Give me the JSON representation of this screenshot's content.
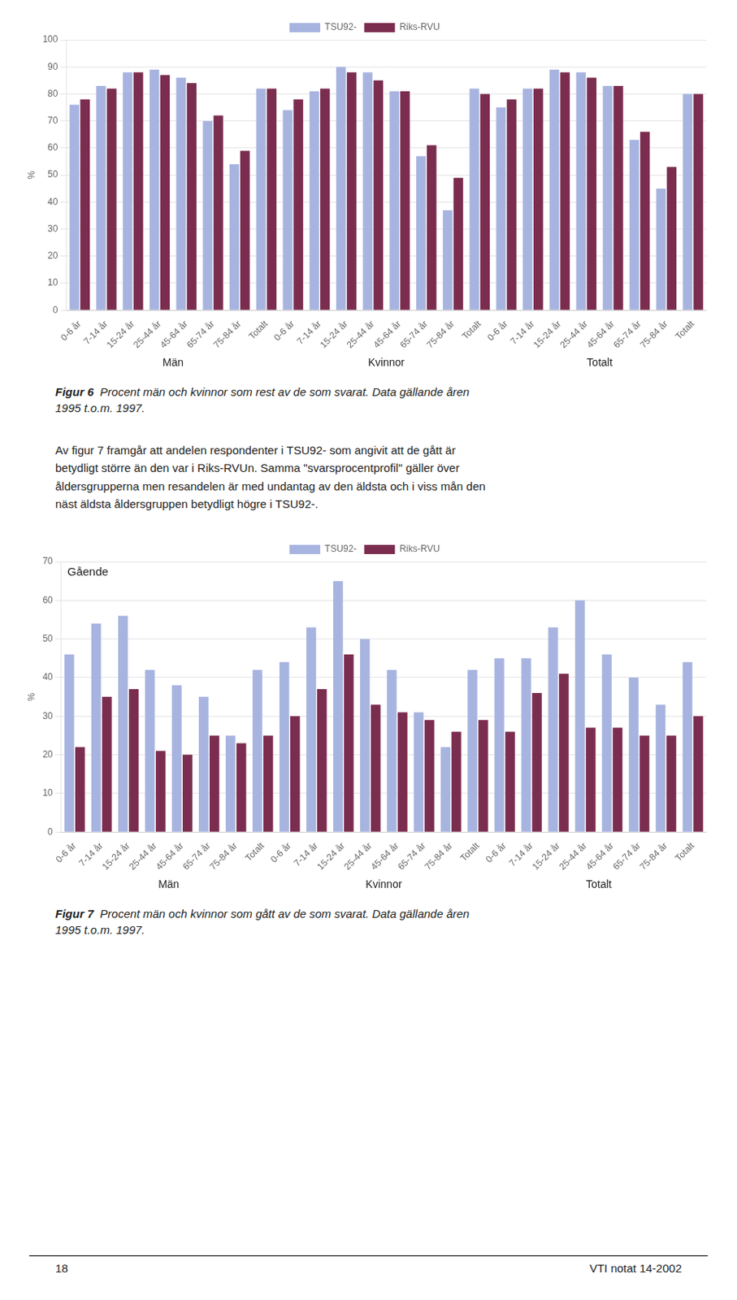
{
  "chart_data": [
    {
      "type": "bar",
      "ylabel": "%",
      "grid": true,
      "legend": "top",
      "ylim": [
        0,
        100
      ],
      "yticks": [
        0,
        10,
        20,
        30,
        40,
        50,
        60,
        70,
        80,
        90,
        100
      ],
      "groups": [
        "Män",
        "Kvinnor",
        "Totalt"
      ],
      "categories": [
        "0-6 år",
        "7-14 år",
        "15-24 år",
        "25-44 år",
        "45-64 år",
        "65-74 år",
        "75-84 år",
        "Totalt",
        "0-6 år",
        "7-14 år",
        "15-24 år",
        "25-44 år",
        "45-64 år",
        "65-74 år",
        "75-84 år",
        "Totalt",
        "0-6 år",
        "7-14 år",
        "15-24 år",
        "25-44 år",
        "45-64 år",
        "65-74 år",
        "75-84 år",
        "Totalt"
      ],
      "series": [
        {
          "name": "TSU92-",
          "color": "#a8b4e0",
          "values": [
            76,
            83,
            88,
            89,
            86,
            70,
            54,
            82,
            74,
            81,
            90,
            88,
            81,
            57,
            37,
            82,
            75,
            82,
            89,
            88,
            83,
            63,
            45,
            80
          ]
        },
        {
          "name": "Riks-RVU",
          "color": "#7b2d4f",
          "values": [
            78,
            82,
            88,
            87,
            84,
            72,
            59,
            82,
            78,
            82,
            88,
            85,
            81,
            61,
            49,
            80,
            78,
            82,
            88,
            86,
            83,
            66,
            53,
            80
          ]
        }
      ],
      "caption_label": "Figur 6",
      "caption": "  Procent män och kvinnor som rest av de som svarat. Data gällande åren\n1995 t.o.m. 1997."
    },
    {
      "type": "bar",
      "ylabel": "%",
      "grid": true,
      "legend": "top",
      "annotations": [
        "Gående"
      ],
      "ylim": [
        0,
        70
      ],
      "yticks": [
        0,
        10,
        20,
        30,
        40,
        50,
        60,
        70
      ],
      "groups": [
        "Män",
        "Kvinnor",
        "Totalt"
      ],
      "categories": [
        "0-6 år",
        "7-14 år",
        "15-24 år",
        "25-44 år",
        "45-64 år",
        "65-74 år",
        "75-84 år",
        "Totalt",
        "0-6 år",
        "7-14 år",
        "15-24 år",
        "25-44 år",
        "45-64 år",
        "65-74 år",
        "75-84 år",
        "Totalt",
        "0-6 år",
        "7-14 år",
        "15-24 år",
        "25-44 år",
        "45-64 år",
        "65-74 år",
        "75-84 år",
        "Totalt"
      ],
      "series": [
        {
          "name": "TSU92-",
          "color": "#a8b4e0",
          "values": [
            46,
            54,
            56,
            42,
            38,
            35,
            25,
            42,
            44,
            53,
            65,
            50,
            42,
            31,
            22,
            42,
            45,
            45,
            53,
            60,
            46,
            40,
            33,
            44
          ]
        },
        {
          "name": "Riks-RVU",
          "color": "#7b2d4f",
          "values": [
            22,
            35,
            37,
            21,
            20,
            25,
            23,
            25,
            30,
            37,
            46,
            33,
            31,
            29,
            26,
            29,
            26,
            36,
            41,
            27,
            27,
            25,
            25,
            30
          ]
        }
      ],
      "caption_label": "Figur 7",
      "caption": "  Procent män och kvinnor som gått av de som svarat. Data gällande åren\n1995 t.o.m. 1997."
    }
  ],
  "body_text": [
    "Av figur 7 framgår att andelen respondenter i TSU92- som angivit att de gått är",
    "betydligt större än den var i Riks-RVUn. Samma \"svarsprocentprofil\" gäller över",
    "åldersgrupperna men resandelen är med undantag av den äldsta och i viss mån den",
    "näst äldsta åldersgruppen betydligt högre i TSU92-."
  ],
  "footer": {
    "page_number": "18",
    "right": "VTI notat 14-2002"
  }
}
